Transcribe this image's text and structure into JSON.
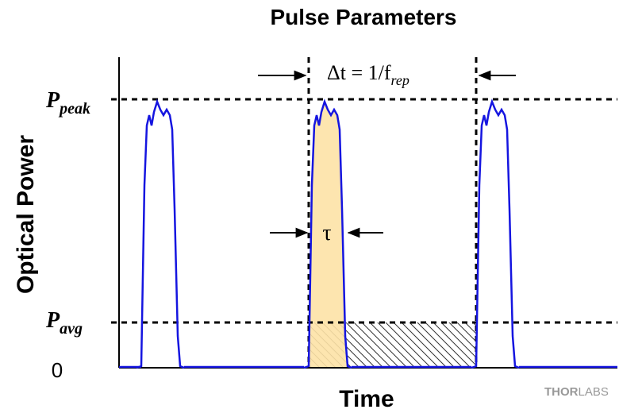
{
  "header": {
    "title": "Pulse Parameters"
  },
  "axes": {
    "y_label": "Optical Power",
    "x_label": "Time",
    "zero_label": "0"
  },
  "levels": {
    "peak": {
      "symbol": "P",
      "subscript": "peak"
    },
    "avg": {
      "symbol": "P",
      "subscript": "avg"
    }
  },
  "annotations": {
    "period": {
      "text": "Δt = 1/f",
      "subscript": "rep"
    },
    "width": "τ"
  },
  "logo": {
    "bold": "THOR",
    "light": "LABS"
  }
}
